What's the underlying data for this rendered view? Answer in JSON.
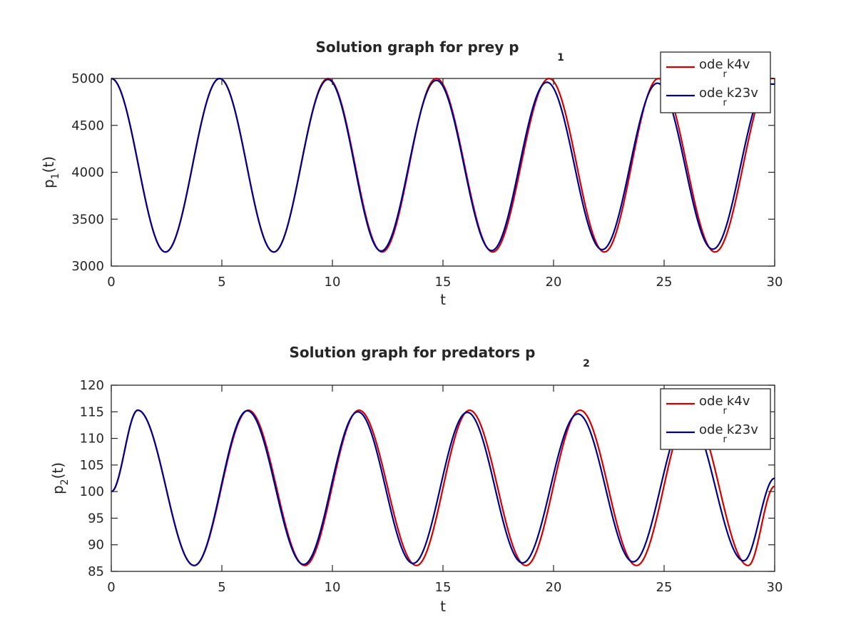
{
  "chart_data": [
    {
      "type": "line",
      "title": "Solution graph for prey p",
      "title_subscript": "1",
      "xlabel": "t",
      "ylabel": "p",
      "ylabel_subscript": "1",
      "ylabel_suffix": "(t)",
      "xlim": [
        0,
        30
      ],
      "ylim": [
        3000,
        5000
      ],
      "xticks": [
        0,
        5,
        10,
        15,
        20,
        25,
        30
      ],
      "yticks": [
        3000,
        3500,
        4000,
        4500,
        5000
      ],
      "xtick_labels": [
        "0",
        "5",
        "10",
        "15",
        "20",
        "25",
        "30"
      ],
      "ytick_labels": [
        "3000",
        "3500",
        "4000",
        "4500",
        "5000"
      ],
      "grid": false,
      "legend_position": "top-right",
      "legend": [
        {
          "main": "ode",
          "sub": "r",
          "rest": "k4v",
          "color": "#d10000"
        },
        {
          "main": "ode",
          "sub": "r",
          "rest": "k23v",
          "color": "#00008b"
        }
      ],
      "series": [
        {
          "color": "#d10000",
          "x": [
            0,
            2.45,
            4.9,
            7.35,
            9.8,
            12.25,
            14.7,
            17.25,
            19.8,
            22.3,
            24.75,
            27.3,
            29.85,
            30
          ],
          "values": [
            5000,
            3150,
            5000,
            3150,
            5000,
            3150,
            5000,
            3150,
            5000,
            3150,
            5000,
            3150,
            5000,
            5000
          ]
        },
        {
          "color": "#00008b",
          "x": [
            0,
            2.45,
            4.9,
            7.35,
            9.8,
            12.2,
            14.7,
            17.2,
            19.7,
            22.2,
            24.7,
            27.2,
            29.7,
            30
          ],
          "values": [
            5000,
            3150,
            5000,
            3150,
            4990,
            3160,
            4980,
            3165,
            4960,
            3175,
            4950,
            3180,
            4940,
            4940
          ]
        }
      ]
    },
    {
      "type": "line",
      "title": "Solution graph for predators p",
      "title_subscript": "2",
      "xlabel": "t",
      "ylabel": "p",
      "ylabel_subscript": "2",
      "ylabel_suffix": "(t)",
      "xlim": [
        0,
        30
      ],
      "ylim": [
        85,
        120
      ],
      "xticks": [
        0,
        5,
        10,
        15,
        20,
        25,
        30
      ],
      "yticks": [
        85,
        90,
        95,
        100,
        105,
        110,
        115,
        120
      ],
      "xtick_labels": [
        "0",
        "5",
        "10",
        "15",
        "20",
        "25",
        "30"
      ],
      "ytick_labels": [
        "85",
        "90",
        "95",
        "100",
        "105",
        "110",
        "115",
        "120"
      ],
      "grid": false,
      "legend_position": "top-right",
      "legend": [
        {
          "main": "ode",
          "sub": "r",
          "rest": "k4v",
          "color": "#d10000"
        },
        {
          "main": "ode",
          "sub": "r",
          "rest": "k23v",
          "color": "#00008b"
        }
      ],
      "series": [
        {
          "color": "#d10000",
          "x": [
            0,
            1.2,
            3.75,
            6.2,
            8.75,
            11.2,
            13.8,
            16.2,
            18.75,
            21.2,
            23.75,
            26.2,
            28.8,
            30
          ],
          "values": [
            100,
            115.3,
            86.1,
            115.3,
            86.1,
            115.3,
            86.1,
            115.3,
            86.1,
            115.3,
            86.1,
            115.3,
            86.1,
            101
          ]
        },
        {
          "color": "#00008b",
          "x": [
            0,
            1.2,
            3.75,
            6.15,
            8.7,
            11.15,
            13.65,
            16.1,
            18.6,
            21.1,
            23.6,
            26.05,
            28.6,
            30
          ],
          "values": [
            100,
            115.3,
            86.1,
            115.2,
            86.3,
            115.0,
            86.5,
            114.9,
            86.6,
            114.6,
            86.8,
            114.4,
            87.0,
            102.5
          ]
        }
      ]
    }
  ]
}
